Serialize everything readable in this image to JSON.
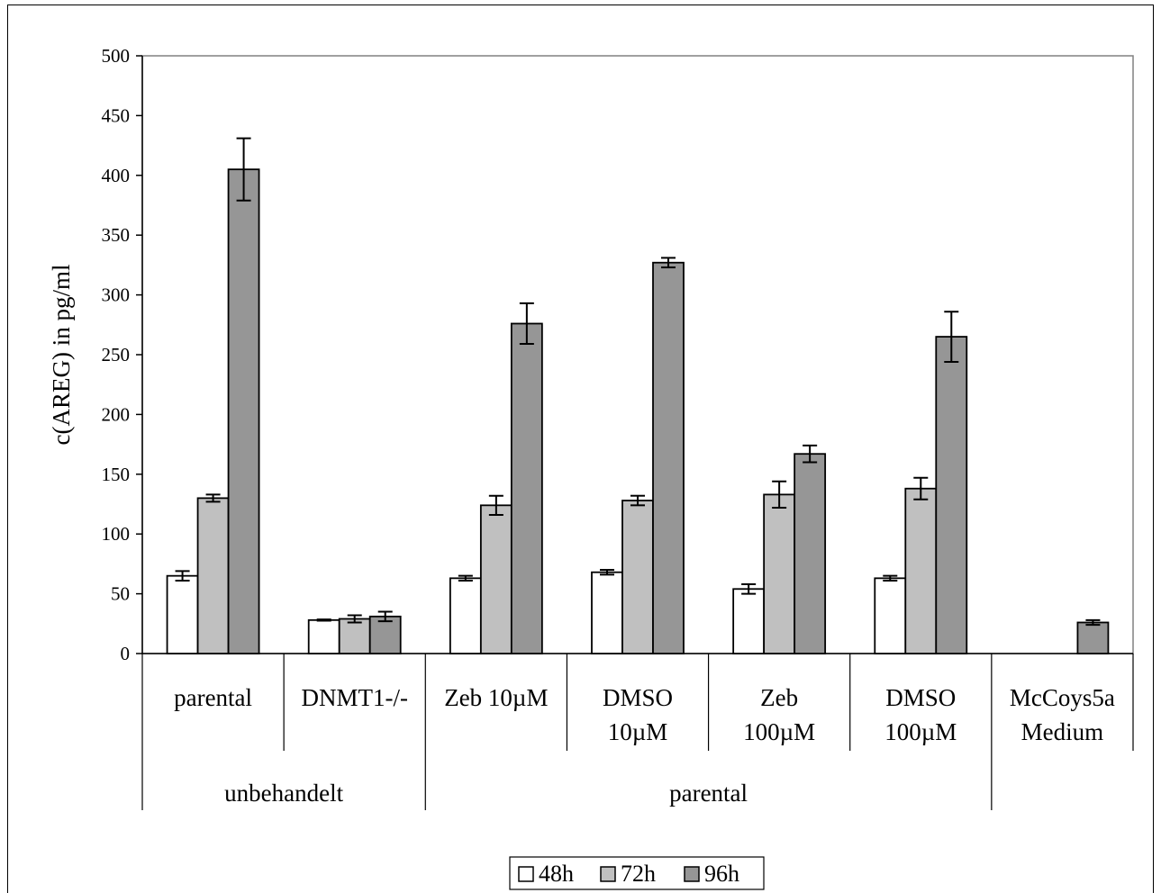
{
  "chart_data": {
    "type": "bar",
    "ylabel": "c(AREG) in pg/ml",
    "ylim": [
      0,
      500
    ],
    "yticks": [
      0,
      50,
      100,
      150,
      200,
      250,
      300,
      350,
      400,
      450,
      500
    ],
    "categories": [
      [
        "parental"
      ],
      [
        "DNMT1-/-"
      ],
      [
        "Zeb 10µM"
      ],
      [
        "DMSO",
        "10µM"
      ],
      [
        "Zeb",
        "100µM"
      ],
      [
        "DMSO",
        "100µM"
      ],
      [
        "McCoys5a",
        "Medium"
      ]
    ],
    "groups": [
      {
        "label": "unbehandelt",
        "span": [
          0,
          1
        ]
      },
      {
        "label": "parental",
        "span": [
          2,
          5
        ]
      }
    ],
    "series": [
      {
        "name": "48h",
        "color": "#ffffff",
        "values": [
          65,
          28,
          63,
          68,
          54,
          63,
          null
        ],
        "errors": [
          4,
          0.5,
          2,
          2,
          4,
          2,
          null
        ]
      },
      {
        "name": "72h",
        "color": "#c0c0c0",
        "values": [
          130,
          29,
          124,
          128,
          133,
          138,
          null
        ],
        "errors": [
          3,
          3,
          8,
          4,
          11,
          9,
          null
        ]
      },
      {
        "name": "96h",
        "color": "#969696",
        "values": [
          405,
          31,
          276,
          327,
          167,
          265,
          26
        ],
        "errors": [
          26,
          4,
          17,
          4,
          7,
          21,
          2
        ]
      }
    ],
    "legend_position": "bottom-center",
    "grid": false
  }
}
